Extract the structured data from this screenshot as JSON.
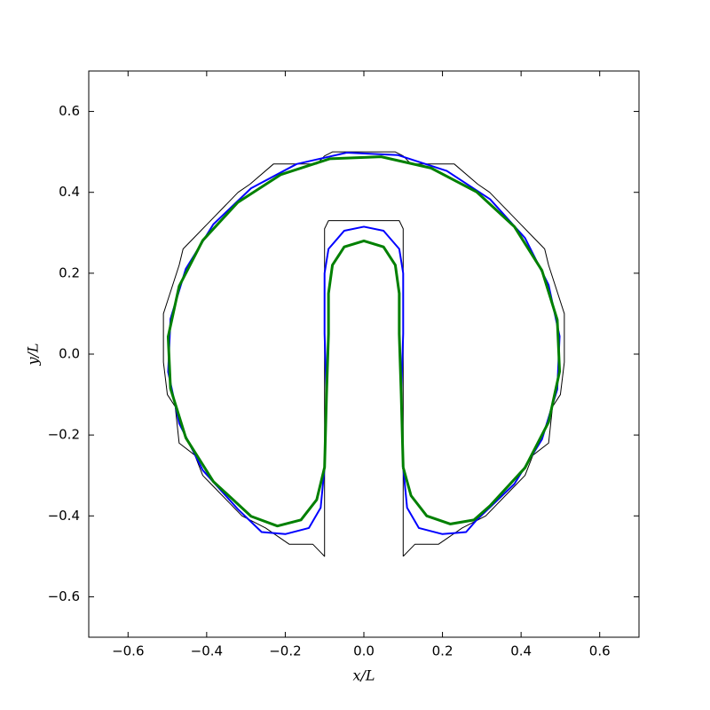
{
  "chart_data": {
    "type": "line",
    "xlabel": "x/L",
    "ylabel": "y/L",
    "xlim": [
      -0.7,
      0.7
    ],
    "ylim": [
      -0.7,
      0.7
    ],
    "xticks": [
      {
        "value": -0.6,
        "label": "−0.6"
      },
      {
        "value": -0.4,
        "label": "−0.4"
      },
      {
        "value": -0.2,
        "label": "−0.2"
      },
      {
        "value": 0,
        "label": "0.0"
      },
      0.2,
      0.4,
      0.6
    ],
    "yticks": [
      {
        "value": -0.6,
        "label": "−0.6"
      },
      {
        "value": -0.4,
        "label": "−0.4"
      },
      {
        "value": -0.2,
        "label": "−0.2"
      },
      {
        "value": 0,
        "label": "0.0"
      },
      0.2,
      0.4,
      0.6
    ],
    "grid": false,
    "series": [
      {
        "color": "#000000",
        "width": 1,
        "x": [
          0.1,
          0.11,
          0.13,
          0.19,
          0.25,
          0.31,
          0.38,
          0.41,
          0.43,
          0.47,
          0.48,
          0.5,
          0.51,
          0.51,
          0.5,
          0.47,
          0.46,
          0.43,
          0.4,
          0.32,
          0.29,
          0.23,
          0.12,
          0.1,
          0.08,
          -0.08,
          -0.1,
          -0.12,
          -0.23,
          -0.29,
          -0.32,
          -0.4,
          -0.43,
          -0.46,
          -0.47,
          -0.5,
          -0.51,
          -0.51,
          -0.5,
          -0.48,
          -0.47,
          -0.43,
          -0.41,
          -0.38,
          -0.31,
          -0.25,
          -0.19,
          -0.13,
          -0.11,
          -0.1,
          -0.1,
          -0.09,
          0.09,
          0.1,
          0.1
        ],
        "values": [
          -0.5,
          -0.49,
          -0.47,
          -0.47,
          -0.43,
          -0.4,
          -0.33,
          -0.3,
          -0.25,
          -0.22,
          -0.13,
          -0.1,
          -0.02,
          0.1,
          0.13,
          0.22,
          0.26,
          0.29,
          0.32,
          0.4,
          0.42,
          0.47,
          0.47,
          0.49,
          0.5,
          0.5,
          0.49,
          0.47,
          0.47,
          0.42,
          0.4,
          0.32,
          0.29,
          0.26,
          0.22,
          0.13,
          0.1,
          -0.02,
          -0.1,
          -0.13,
          -0.22,
          -0.25,
          -0.3,
          -0.33,
          -0.4,
          -0.43,
          -0.47,
          -0.47,
          -0.49,
          -0.5,
          0.31,
          0.33,
          0.33,
          0.31,
          -0.5
        ]
      },
      {
        "color": "#0000ff",
        "width": 2,
        "x": [
          0.1,
          0.11,
          0.14,
          0.2,
          0.26,
          0.287,
          0.383,
          0.453,
          0.492,
          0.498,
          0.47,
          0.41,
          0.321,
          0.211,
          0.087,
          -0.044,
          -0.171,
          -0.287,
          -0.383,
          -0.453,
          -0.492,
          -0.498,
          -0.47,
          -0.41,
          -0.321,
          -0.26,
          -0.2,
          -0.14,
          -0.11,
          -0.1,
          -0.095,
          -0.1,
          -0.1,
          -0.09,
          -0.05,
          0,
          0.05,
          0.09,
          0.1,
          0.1,
          0.095,
          0.1
        ],
        "values": [
          -0.28,
          -0.38,
          -0.43,
          -0.445,
          -0.44,
          -0.41,
          -0.321,
          -0.211,
          -0.087,
          0.044,
          0.171,
          0.287,
          0.383,
          0.453,
          0.492,
          0.498,
          0.47,
          0.41,
          0.321,
          0.211,
          0.087,
          -0.044,
          -0.171,
          -0.287,
          -0.383,
          -0.44,
          -0.445,
          -0.43,
          -0.38,
          -0.28,
          -0.1,
          0.05,
          0.2,
          0.26,
          0.305,
          0.315,
          0.305,
          0.26,
          0.2,
          0.05,
          -0.1,
          -0.28
        ]
      },
      {
        "color": "#008000",
        "width": 3,
        "x": [
          0.1,
          0.12,
          0.16,
          0.22,
          0.28,
          0.321,
          0.41,
          0.47,
          0.498,
          0.492,
          0.453,
          0.383,
          0.287,
          0.171,
          0.044,
          -0.087,
          -0.211,
          -0.321,
          -0.41,
          -0.47,
          -0.498,
          -0.492,
          -0.453,
          -0.383,
          -0.287,
          -0.22,
          -0.16,
          -0.12,
          -0.1,
          -0.095,
          -0.09,
          -0.09,
          -0.08,
          -0.05,
          0,
          0.05,
          0.08,
          0.09,
          0.09,
          0.095,
          0.1
        ],
        "values": [
          -0.28,
          -0.35,
          -0.4,
          -0.42,
          -0.41,
          -0.375,
          -0.281,
          -0.168,
          -0.043,
          0.085,
          0.207,
          0.315,
          0.401,
          0.46,
          0.488,
          0.483,
          0.444,
          0.375,
          0.281,
          0.168,
          0.043,
          -0.085,
          -0.207,
          -0.315,
          -0.401,
          -0.425,
          -0.41,
          -0.36,
          -0.28,
          -0.1,
          0.05,
          0.15,
          0.22,
          0.265,
          0.28,
          0.265,
          0.22,
          0.15,
          0.05,
          -0.1,
          -0.28
        ]
      }
    ]
  }
}
